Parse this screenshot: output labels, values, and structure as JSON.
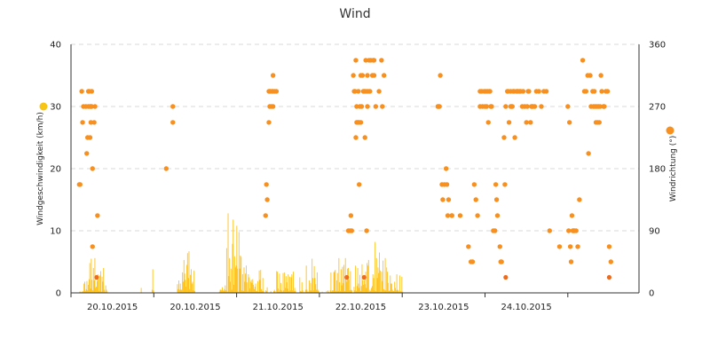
{
  "chart_data": {
    "type": "bar",
    "title": "Wind",
    "x_tick_labels": [
      "20.10.2015",
      "20.10.2015",
      "21.10.2015",
      "22.10.2015",
      "23.10.2015",
      "24.10.2015"
    ],
    "y_left": {
      "label": "Windgeschwindigkeit (km/h)",
      "range": [
        0,
        40
      ],
      "ticks": [
        "0",
        "10",
        "20",
        "30",
        "40"
      ]
    },
    "y_right": {
      "label": "Windrichtung (°)",
      "range": [
        0,
        360
      ],
      "ticks": [
        "0",
        "90",
        "180",
        "270",
        "360"
      ]
    },
    "grid": true,
    "colors": {
      "speed": "#ffc21c",
      "speed_marker": "#f7c515",
      "direction": "#f7901e",
      "gust": "#ee6b1e"
    },
    "series": [
      {
        "name": "Windgeschwindigkeit (km/h)",
        "type": "bar",
        "axis": "left",
        "x_range": [
          0,
          3.9
        ],
        "values": [
          0.2,
          0.2,
          0.1,
          0.2,
          0.2,
          0.3,
          1.5,
          1.8,
          0.3,
          0.6,
          1.9,
          0.4,
          1.3,
          2.2,
          4.8,
          0.7,
          5.5,
          2.1,
          0.4,
          4.0,
          2.0,
          5.6,
          0.8,
          1.0,
          1.9,
          3.0,
          2.2,
          0.3,
          2.8,
          3.5,
          0.2,
          2.6,
          1.8,
          4.0,
          0.5,
          0.2,
          1.2,
          0.5,
          0.2,
          0,
          0,
          0,
          0,
          0,
          0,
          0,
          0,
          0,
          0,
          0,
          0,
          0,
          0,
          0,
          0,
          0,
          0,
          0,
          0,
          0,
          0,
          0,
          0,
          0,
          0,
          0,
          0,
          0,
          0,
          0,
          0,
          0,
          0,
          0,
          0,
          0,
          0,
          0,
          0,
          0,
          0,
          0,
          0,
          0,
          0,
          0.8,
          0,
          0,
          0,
          0,
          0,
          0,
          0,
          0,
          0,
          0,
          0,
          0,
          0,
          0,
          0.5,
          3.8,
          0.4,
          0,
          0,
          0,
          0,
          0,
          0,
          0,
          0,
          0,
          0,
          0,
          0,
          0,
          0,
          0,
          0,
          0,
          0,
          0,
          0,
          0,
          0,
          0,
          0,
          0,
          0,
          0,
          0,
          0,
          0,
          0,
          0,
          1.4,
          0.6,
          2.0,
          0.5,
          1.5,
          0.5,
          0.5,
          3.3,
          1.8,
          5.3,
          3.1,
          2.1,
          1.0,
          4.5,
          6.4,
          2.4,
          6.7,
          0.6,
          2.9,
          3.8,
          1.5,
          1.8,
          0.4,
          3.6,
          0.3,
          0,
          0,
          0,
          0,
          0,
          0,
          0,
          0,
          0,
          0,
          0,
          0,
          0,
          0,
          0,
          0,
          0,
          0,
          0,
          0,
          0,
          0,
          0,
          0,
          0,
          0,
          0,
          0,
          0,
          0,
          0,
          0,
          0,
          0.2,
          0.5,
          0.5,
          0.4,
          0.9,
          0.4,
          0.3,
          0.6,
          1.2,
          0.4,
          7.2,
          0.2,
          12.8,
          2.7,
          5.6,
          1.8,
          3.9,
          0.5,
          7.9,
          11.8,
          1.3,
          5.9,
          4.1,
          4.4,
          10.8,
          3.9,
          0.2,
          9.8,
          3.9,
          6.0,
          5.8,
          0.4,
          3.0,
          0.3,
          4.1,
          1.8,
          3.1,
          4.4,
          1.7,
          0.2,
          3.0,
          2.5,
          0.7,
          1.8,
          2.1,
          1.6,
          2.2,
          1.3,
          0.6,
          1.0,
          1.5,
          0.3,
          0.3,
          1.9,
          0.2,
          3.6,
          2.1,
          3.7,
          0.6,
          0.3,
          2.4,
          0.3,
          0,
          0,
          0.4,
          0.3,
          0.9,
          0,
          0,
          0,
          0,
          0.3,
          0,
          0,
          0,
          0.3,
          0.5,
          0.3,
          0,
          3.5,
          3.4,
          0.7,
          0.2,
          3.1,
          0.5,
          1.6,
          0.4,
          0.2,
          3.2,
          0.4,
          3.3,
          0.8,
          2.7,
          1.7,
          0.7,
          3.0,
          0.3,
          2.6,
          0.4,
          2.5,
          3.0,
          0.4,
          3.4,
          0.3,
          0.8,
          0.3,
          0,
          0,
          0,
          0,
          0,
          2.5,
          0.3,
          0.2,
          1.7,
          0.4,
          0,
          0.2,
          0,
          0.5,
          4.4,
          0.5,
          0.2,
          0.2,
          2.0,
          0.4,
          1.6,
          0.4,
          5.5,
          2.4,
          0.4,
          4.3,
          2.4,
          1.4,
          0.5,
          3.3,
          0.5,
          0.3,
          0,
          0,
          0,
          0,
          0.2,
          0,
          0,
          0,
          0,
          0,
          0.3,
          0,
          0.4,
          0.2,
          0,
          0.4,
          3.3,
          0.2,
          0.4,
          0.4,
          3.3,
          3.5,
          3.7,
          0.3,
          2.0,
          3.2,
          0.3,
          5.6,
          1.7,
          0.3,
          3.8,
          1.2,
          4.2,
          1.6,
          4.5,
          0.3,
          5.6,
          2.1,
          1.8,
          3.9,
          4.0,
          2.1,
          0.4,
          3.5,
          0.5,
          0.4,
          0,
          0,
          1.0,
          0.4,
          4.4,
          0.3,
          1.1,
          4.0,
          1.5,
          0.8,
          2.9,
          0.3,
          1.1,
          4.6,
          2.0,
          1.3,
          2.0,
          1.4,
          3.4,
          0.8,
          4.8,
          4.4,
          5.3,
          0.2,
          0.5,
          0.3,
          0.8,
          1.1,
          3.0,
          2.4,
          0.4,
          8.2,
          0.3,
          5.6,
          2.4,
          4.1,
          3.2,
          6.5,
          3.6,
          0.2,
          3.4,
          1.9,
          5.2,
          0.6,
          0.4,
          5.6,
          0.4,
          4.1,
          3.4,
          1.6,
          0.3,
          0.4,
          2.8,
          1.5,
          1.5,
          0.5,
          0.3,
          0.3,
          1.8,
          0.8,
          0.4,
          3.0,
          0.5,
          0.4,
          0.2,
          2.8,
          0.3,
          0.2,
          2.6,
          0.2
        ]
      },
      {
        "name": "Windrichtung (°)",
        "type": "scatter",
        "axis": "right",
        "points": [
          [
            0.1,
            157
          ],
          [
            0.11,
            157
          ],
          [
            0.13,
            292
          ],
          [
            0.14,
            247
          ],
          [
            0.15,
            270
          ],
          [
            0.18,
            270
          ],
          [
            0.19,
            202
          ],
          [
            0.2,
            225
          ],
          [
            0.21,
            292
          ],
          [
            0.21,
            270
          ],
          [
            0.22,
            292
          ],
          [
            0.23,
            225
          ],
          [
            0.23,
            270
          ],
          [
            0.24,
            247
          ],
          [
            0.24,
            270
          ],
          [
            0.25,
            292
          ],
          [
            0.25,
            270
          ],
          [
            0.26,
            180
          ],
          [
            0.26,
            67
          ],
          [
            0.28,
            247
          ],
          [
            0.29,
            270
          ],
          [
            0.32,
            112
          ],
          [
            1.15,
            180
          ],
          [
            1.23,
            247
          ],
          [
            1.23,
            270
          ],
          [
            2.35,
            112
          ],
          [
            2.36,
            157
          ],
          [
            2.37,
            135
          ],
          [
            2.39,
            292
          ],
          [
            2.39,
            247
          ],
          [
            2.4,
            292
          ],
          [
            2.4,
            270
          ],
          [
            2.41,
            292
          ],
          [
            2.42,
            270
          ],
          [
            2.43,
            292
          ],
          [
            2.44,
            270
          ],
          [
            2.44,
            315
          ],
          [
            2.44,
            292
          ],
          [
            2.46,
            292
          ],
          [
            2.48,
            292
          ],
          [
            3.35,
            90
          ],
          [
            3.37,
            90
          ],
          [
            3.38,
            112
          ],
          [
            3.39,
            90
          ],
          [
            3.41,
            315
          ],
          [
            3.42,
            292
          ],
          [
            3.43,
            292
          ],
          [
            3.44,
            225
          ],
          [
            3.44,
            337
          ],
          [
            3.45,
            270
          ],
          [
            3.45,
            247
          ],
          [
            3.46,
            247
          ],
          [
            3.47,
            292
          ],
          [
            3.47,
            247
          ],
          [
            3.48,
            247
          ],
          [
            3.48,
            157
          ],
          [
            3.49,
            270
          ],
          [
            3.5,
            315
          ],
          [
            3.5,
            247
          ],
          [
            3.51,
            270
          ],
          [
            3.52,
            315
          ],
          [
            3.53,
            292
          ],
          [
            3.54,
            292
          ],
          [
            3.55,
            225
          ],
          [
            3.55,
            292
          ],
          [
            3.56,
            337
          ],
          [
            3.57,
            292
          ],
          [
            3.57,
            90
          ],
          [
            3.58,
            270
          ],
          [
            3.58,
            315
          ],
          [
            3.59,
            292
          ],
          [
            3.6,
            337
          ],
          [
            3.61,
            292
          ],
          [
            3.62,
            337
          ],
          [
            3.64,
            315
          ],
          [
            3.65,
            337
          ],
          [
            3.66,
            337
          ],
          [
            3.66,
            315
          ],
          [
            3.68,
            270
          ],
          [
            3.72,
            292
          ],
          [
            3.75,
            337
          ],
          [
            3.76,
            270
          ],
          [
            3.78,
            315
          ],
          [
            4.43,
            270
          ],
          [
            4.44,
            270
          ],
          [
            4.45,
            270
          ],
          [
            4.46,
            315
          ],
          [
            4.48,
            157
          ],
          [
            4.49,
            135
          ],
          [
            4.51,
            157
          ],
          [
            4.53,
            180
          ],
          [
            4.54,
            157
          ],
          [
            4.55,
            112
          ],
          [
            4.56,
            135
          ],
          [
            4.6,
            112
          ],
          [
            4.6,
            112
          ],
          [
            4.7,
            112
          ],
          [
            4.8,
            67
          ],
          [
            4.83,
            45
          ],
          [
            4.85,
            45
          ],
          [
            4.87,
            157
          ],
          [
            4.89,
            135
          ],
          [
            4.91,
            112
          ],
          [
            4.94,
            292
          ],
          [
            4.94,
            270
          ],
          [
            4.96,
            292
          ],
          [
            4.97,
            270
          ],
          [
            4.99,
            292
          ],
          [
            5.0,
            270
          ],
          [
            5.01,
            292
          ],
          [
            5.02,
            270
          ],
          [
            5.03,
            292
          ],
          [
            5.04,
            247
          ],
          [
            5.05,
            292
          ],
          [
            5.06,
            292
          ],
          [
            5.07,
            270
          ],
          [
            5.08,
            270
          ],
          [
            5.1,
            90
          ],
          [
            5.12,
            90
          ],
          [
            5.13,
            157
          ],
          [
            5.14,
            135
          ],
          [
            5.15,
            112
          ],
          [
            5.18,
            67
          ],
          [
            5.19,
            45
          ],
          [
            5.2,
            45
          ],
          [
            5.23,
            225
          ],
          [
            5.24,
            157
          ],
          [
            5.25,
            270
          ],
          [
            5.27,
            292
          ],
          [
            5.28,
            292
          ],
          [
            5.29,
            247
          ],
          [
            5.31,
            270
          ],
          [
            5.31,
            292
          ],
          [
            5.32,
            270
          ],
          [
            5.33,
            270
          ],
          [
            5.34,
            292
          ],
          [
            5.35,
            292
          ],
          [
            5.36,
            225
          ],
          [
            5.38,
            292
          ],
          [
            5.39,
            292
          ],
          [
            5.4,
            292
          ],
          [
            5.42,
            292
          ],
          [
            5.43,
            292
          ],
          [
            5.45,
            270
          ],
          [
            5.46,
            292
          ],
          [
            5.48,
            270
          ],
          [
            5.5,
            247
          ],
          [
            5.51,
            270
          ],
          [
            5.52,
            292
          ],
          [
            5.53,
            292
          ],
          [
            5.55,
            247
          ],
          [
            5.56,
            270
          ],
          [
            5.57,
            270
          ],
          [
            5.58,
            270
          ],
          [
            5.6,
            270
          ],
          [
            5.62,
            292
          ],
          [
            5.65,
            292
          ],
          [
            5.68,
            270
          ],
          [
            5.71,
            292
          ],
          [
            5.74,
            292
          ],
          [
            5.78,
            90
          ],
          [
            5.9,
            67
          ],
          [
            6.0,
            270
          ],
          [
            6.01,
            90
          ],
          [
            6.02,
            247
          ],
          [
            6.03,
            67
          ],
          [
            6.04,
            45
          ],
          [
            6.05,
            112
          ],
          [
            6.06,
            90
          ],
          [
            6.07,
            90
          ],
          [
            6.08,
            90
          ],
          [
            6.1,
            90
          ],
          [
            6.12,
            67
          ],
          [
            6.14,
            135
          ],
          [
            6.18,
            337
          ],
          [
            6.2,
            292
          ],
          [
            6.22,
            292
          ],
          [
            6.24,
            315
          ],
          [
            6.25,
            202
          ],
          [
            6.27,
            315
          ],
          [
            6.28,
            270
          ],
          [
            6.3,
            292
          ],
          [
            6.31,
            270
          ],
          [
            6.32,
            292
          ],
          [
            6.33,
            270
          ],
          [
            6.34,
            247
          ],
          [
            6.35,
            270
          ],
          [
            6.36,
            247
          ],
          [
            6.37,
            270
          ],
          [
            6.38,
            247
          ],
          [
            6.39,
            270
          ],
          [
            6.4,
            315
          ],
          [
            6.41,
            292
          ],
          [
            6.43,
            270
          ],
          [
            6.44,
            270
          ],
          [
            6.46,
            292
          ],
          [
            6.48,
            292
          ],
          [
            6.5,
            67
          ],
          [
            6.52,
            45
          ]
        ]
      },
      {
        "name": "Böen",
        "type": "scatter",
        "axis": "left",
        "points": [
          [
            0.31,
            2.5
          ],
          [
            3.33,
            2.5
          ],
          [
            3.54,
            2.5
          ],
          [
            5.25,
            2.5
          ],
          [
            6.5,
            2.5
          ]
        ]
      }
    ],
    "legend_markers": [
      "speed",
      "direction"
    ]
  }
}
